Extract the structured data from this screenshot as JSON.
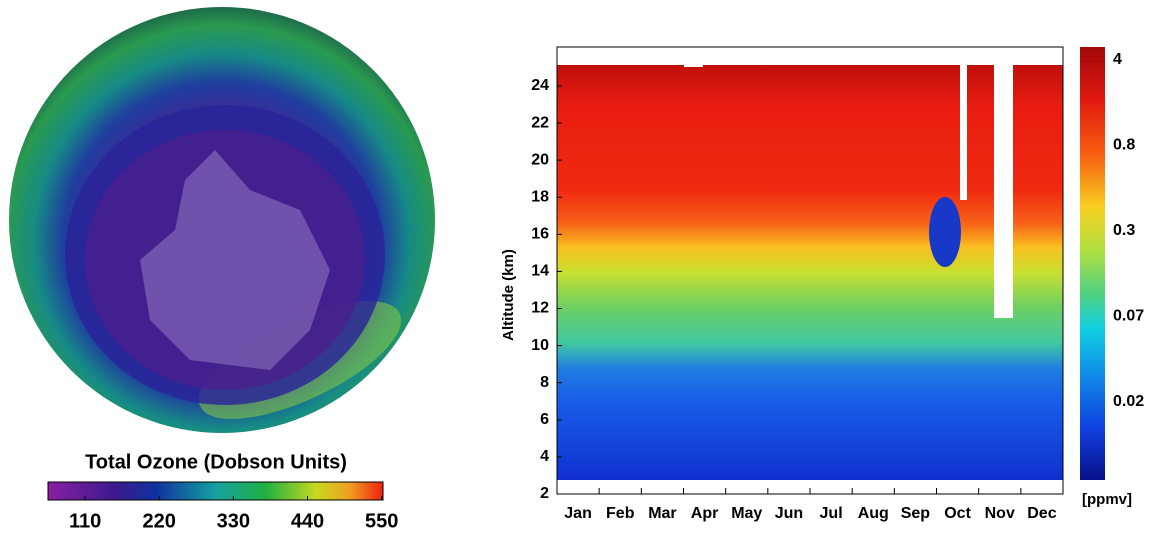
{
  "left": {
    "title": "Total Ozone (Dobson Units)",
    "colorbar": {
      "lim": [
        55,
        552
      ],
      "ticks": [
        110,
        220,
        330,
        440,
        550
      ]
    }
  },
  "right": {
    "y_label": "Altitude (km)",
    "ylim": [
      2,
      26.1
    ],
    "yticks": [
      2,
      4,
      6,
      8,
      10,
      12,
      14,
      16,
      18,
      20,
      22,
      24
    ],
    "months": [
      "Jan",
      "Feb",
      "Mar",
      "Apr",
      "May",
      "Jun",
      "Jul",
      "Aug",
      "Sep",
      "Oct",
      "Nov",
      "Dec"
    ],
    "colorbar": {
      "labels": [
        "4",
        "0.8",
        "0.3",
        "0.07",
        "0.02"
      ],
      "unit": "[ppmv]"
    }
  }
}
